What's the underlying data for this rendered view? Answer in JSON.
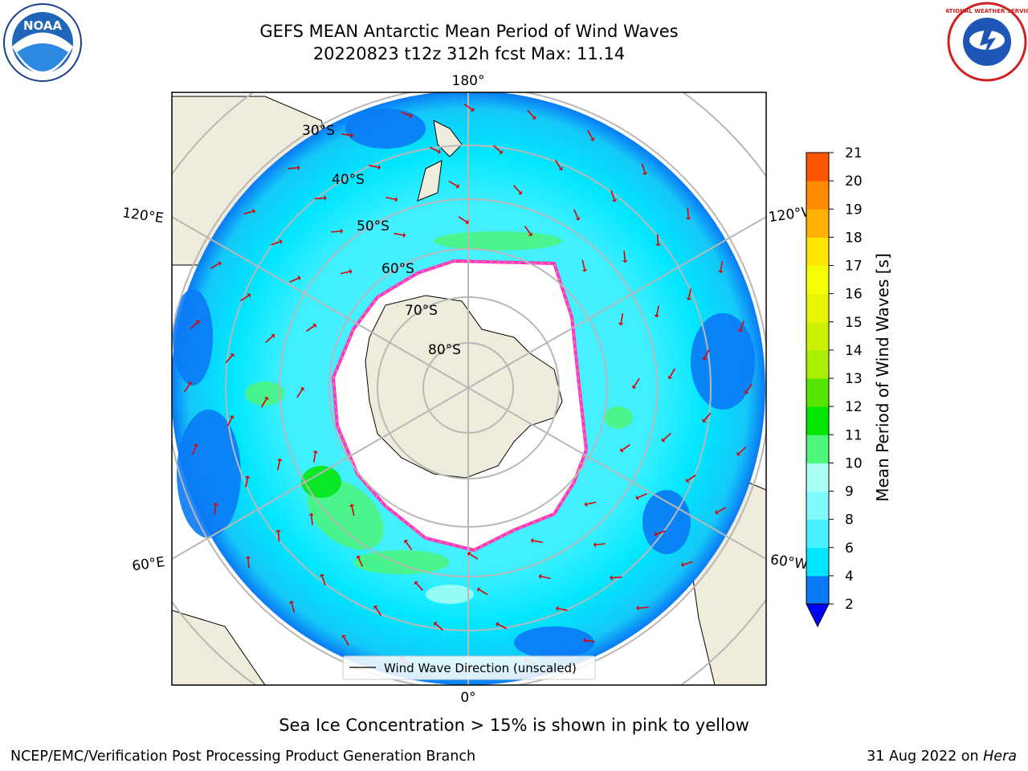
{
  "header": {
    "title_line1": "GEFS MEAN Antarctic Mean Period of Wind Waves",
    "title_line2": "20220823 t12z 312h fcst   Max: 11.14"
  },
  "logos": {
    "left": {
      "icon": "noaa-logo-icon",
      "text": "NOAA"
    },
    "right": {
      "icon": "nws-logo-icon",
      "text": "NATIONAL WEATHER SERVICE"
    }
  },
  "map": {
    "lon_labels": {
      "top": "180°",
      "bottom": "0°",
      "upper_left": "120°E",
      "lower_left": "60°E",
      "upper_right": "120°W",
      "lower_right": "60°W"
    },
    "lat_labels": [
      "30°S",
      "40°S",
      "50°S",
      "60°S",
      "70°S",
      "80°S"
    ],
    "legend_text": "Wind Wave Direction (unscaled)",
    "colors": {
      "land": "#efecdc",
      "ice_edge": "#ff33cc",
      "arrow": "#e00000",
      "grid": "#b8b8b8"
    }
  },
  "colorbar": {
    "label": "Mean Period of Wind Waves [s]",
    "ticks": [
      "2",
      "4",
      "6",
      "8",
      "9",
      "10",
      "11",
      "12",
      "13",
      "14",
      "15",
      "16",
      "17",
      "18",
      "19",
      "20",
      "21"
    ],
    "colors": [
      "#0a7af5",
      "#00e6ff",
      "#47f0ff",
      "#7ffbff",
      "#a8fff2",
      "#4df57a",
      "#00e600",
      "#55e600",
      "#aaee00",
      "#ccf000",
      "#e8f500",
      "#f5ff00",
      "#ffe600",
      "#ffb300",
      "#ff8c00",
      "#ff5500",
      "#ff2a00",
      "#ff0000"
    ],
    "extend_color": "#0000ff"
  },
  "footer": {
    "caption": "Sea Ice Concentration > 15% is shown in pink to yellow",
    "credit_left": "NCEP/EMC/Verification Post Processing Product Generation Branch",
    "credit_date": "31 Aug 2022 on ",
    "credit_place": "Hera"
  }
}
